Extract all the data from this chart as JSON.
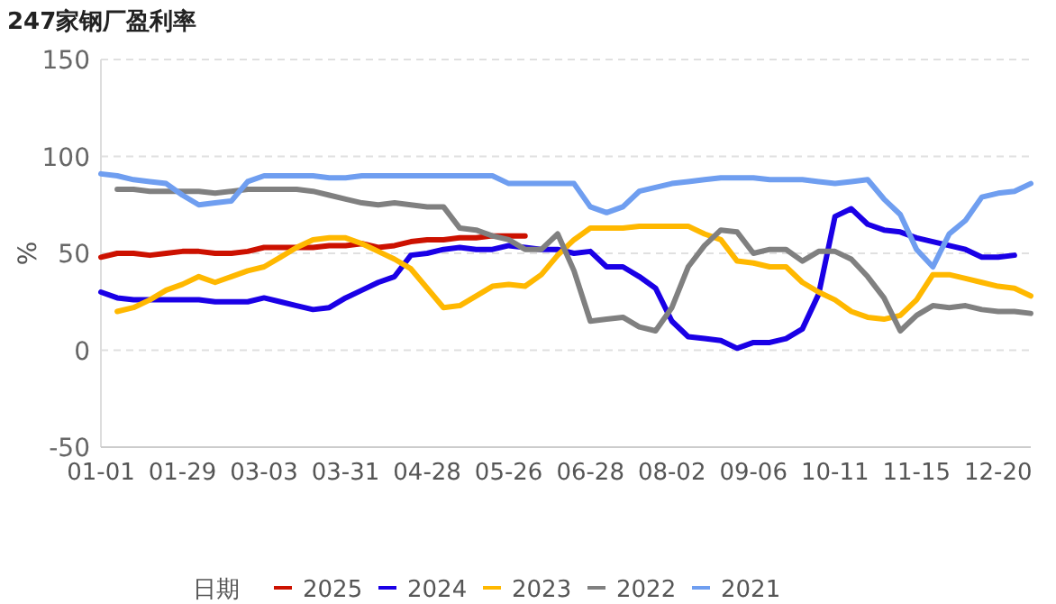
{
  "chart_data": {
    "type": "line",
    "title": "247家钢厂盈利率",
    "ylabel": "%",
    "legend_title": "日期",
    "legend": "bottom",
    "grid": "y",
    "line_style": "solid",
    "marker": "none",
    "categories": [
      "01-01",
      null,
      null,
      null,
      null,
      "01-29",
      null,
      null,
      null,
      null,
      "03-03",
      null,
      null,
      null,
      null,
      "03-31",
      null,
      null,
      null,
      null,
      "04-28",
      null,
      null,
      null,
      null,
      "05-26",
      null,
      null,
      null,
      null,
      "06-28",
      null,
      null,
      null,
      null,
      "08-02",
      null,
      null,
      null,
      null,
      "09-06",
      null,
      null,
      null,
      null,
      "10-11",
      null,
      null,
      null,
      null,
      "11-15",
      null,
      null,
      null,
      null,
      "12-20",
      null,
      null
    ],
    "ylim": [
      -50,
      150
    ],
    "yticks": [
      -50,
      0,
      50,
      100,
      150
    ],
    "series": [
      {
        "name": "2025",
        "color": "#cc1100",
        "values": [
          48,
          50,
          50,
          49,
          50,
          51,
          51,
          50,
          50,
          51,
          53,
          53,
          53,
          53,
          54,
          54,
          55,
          53,
          54,
          56,
          57,
          57,
          58,
          58,
          59,
          59,
          59,
          null,
          null,
          null,
          null,
          null,
          null,
          null,
          null,
          null,
          null,
          null,
          null,
          null,
          null,
          null,
          null,
          null,
          null,
          null,
          null,
          null,
          null,
          null,
          null,
          null,
          null,
          null,
          null,
          null,
          null,
          null
        ]
      },
      {
        "name": "2024",
        "color": "#1a00e6",
        "values": [
          30,
          27,
          26,
          26,
          26,
          26,
          26,
          25,
          25,
          25,
          27,
          25,
          23,
          21,
          22,
          27,
          31,
          35,
          38,
          49,
          50,
          52,
          53,
          52,
          52,
          54,
          53,
          52,
          52,
          50,
          51,
          43,
          43,
          38,
          32,
          15,
          7,
          6,
          5,
          1,
          4,
          4,
          6,
          11,
          29,
          69,
          73,
          65,
          62,
          61,
          58,
          56,
          54,
          52,
          48,
          48,
          49,
          null
        ]
      },
      {
        "name": "2023",
        "color": "#ffb800",
        "values": [
          null,
          20,
          22,
          26,
          31,
          34,
          38,
          35,
          38,
          41,
          43,
          48,
          53,
          57,
          58,
          58,
          55,
          51,
          47,
          42,
          32,
          22,
          23,
          28,
          33,
          34,
          33,
          39,
          49,
          57,
          63,
          63,
          63,
          64,
          64,
          64,
          64,
          60,
          57,
          46,
          45,
          43,
          43,
          35,
          30,
          26,
          20,
          17,
          16,
          18,
          26,
          39,
          39,
          37,
          35,
          33,
          32,
          28
        ]
      },
      {
        "name": "2022",
        "color": "#808080",
        "values": [
          null,
          83,
          83,
          82,
          82,
          82,
          82,
          81,
          82,
          83,
          83,
          83,
          83,
          82,
          80,
          78,
          76,
          75,
          76,
          75,
          74,
          74,
          63,
          62,
          59,
          57,
          52,
          52,
          60,
          41,
          15,
          16,
          17,
          12,
          10,
          22,
          43,
          54,
          62,
          61,
          50,
          52,
          52,
          46,
          51,
          51,
          47,
          38,
          27,
          10,
          18,
          23,
          22,
          23,
          21,
          20,
          20,
          19
        ]
      },
      {
        "name": "2021",
        "color": "#6f9ef0",
        "values": [
          91,
          90,
          88,
          87,
          86,
          80,
          75,
          76,
          77,
          87,
          90,
          90,
          90,
          90,
          89,
          89,
          90,
          90,
          90,
          90,
          90,
          90,
          90,
          90,
          90,
          86,
          86,
          86,
          86,
          86,
          74,
          71,
          74,
          82,
          84,
          86,
          87,
          88,
          89,
          89,
          89,
          88,
          88,
          88,
          87,
          86,
          87,
          88,
          78,
          70,
          52,
          43,
          60,
          67,
          79,
          81,
          82,
          86
        ]
      }
    ]
  }
}
